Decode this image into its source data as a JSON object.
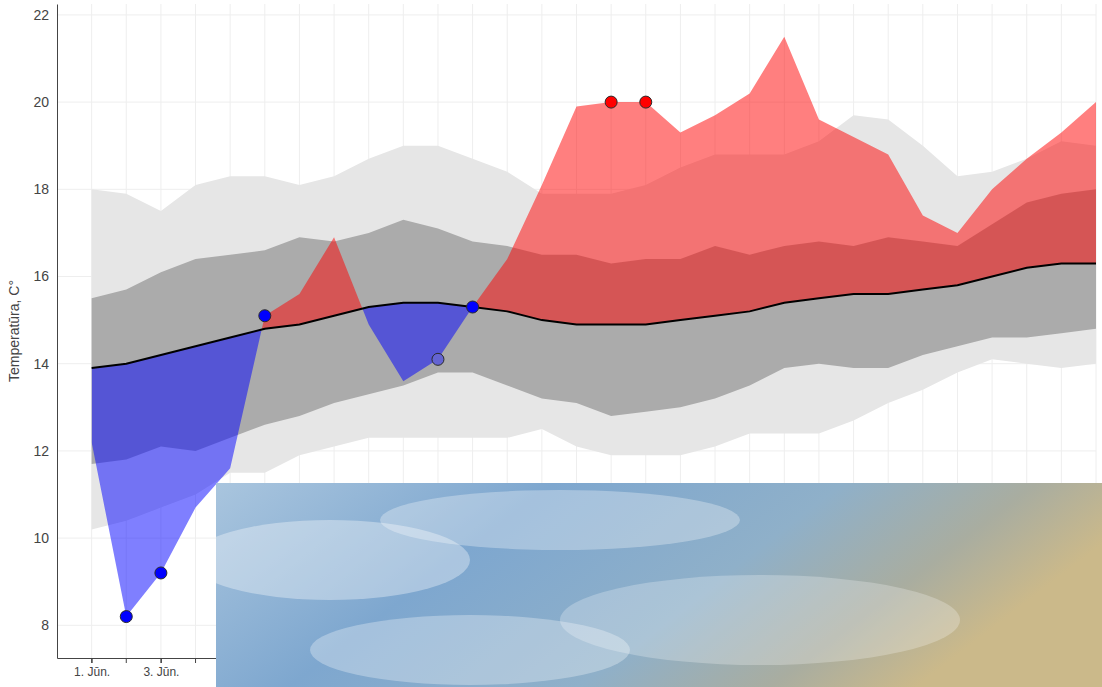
{
  "chart_data": {
    "type": "line",
    "y_label": "Temperatūra, C°",
    "x": [
      1,
      2,
      3,
      4,
      5,
      6,
      7,
      8,
      9,
      10,
      11,
      12,
      13,
      14,
      15,
      16,
      17,
      18,
      19,
      20,
      21,
      22,
      23,
      24,
      25,
      26,
      27,
      28,
      29,
      30
    ],
    "xlim": [
      0,
      30
    ],
    "xticks": [
      {
        "value": 1,
        "label": "1. Jūn."
      },
      {
        "value": 3,
        "label": "3. Jūn."
      }
    ],
    "ylim": [
      7.25,
      22.25
    ],
    "yticks": [
      8,
      10,
      12,
      14,
      16,
      18,
      20,
      22
    ],
    "grid": true,
    "series": [
      {
        "type": "band",
        "color": "#e6e6e6",
        "values": [
          18.0,
          17.9,
          17.5,
          18.1,
          18.3,
          18.3,
          18.1,
          18.3,
          18.7,
          19.0,
          19.0,
          18.7,
          18.4,
          17.9,
          17.9,
          17.9,
          18.1,
          18.5,
          18.8,
          18.8,
          18.8,
          19.1,
          19.7,
          19.6,
          19.0,
          18.3,
          18.4,
          18.7,
          19.1,
          19.0
        ],
        "lower": [
          10.2,
          10.4,
          10.7,
          11.0,
          11.5,
          11.5,
          11.9,
          12.1,
          12.3,
          12.3,
          12.3,
          12.3,
          12.3,
          12.5,
          12.1,
          11.9,
          11.9,
          11.9,
          12.1,
          12.4,
          12.4,
          12.4,
          12.7,
          13.1,
          13.4,
          13.8,
          14.1,
          14.0,
          13.9,
          14.0
        ]
      },
      {
        "type": "band",
        "color": "#ababab",
        "values": [
          15.5,
          15.7,
          16.1,
          16.4,
          16.5,
          16.6,
          16.9,
          16.8,
          17.0,
          17.3,
          17.1,
          16.8,
          16.7,
          16.5,
          16.5,
          16.3,
          16.4,
          16.4,
          16.7,
          16.5,
          16.7,
          16.8,
          16.7,
          16.9,
          16.8,
          16.7,
          17.2,
          17.7,
          17.9,
          18.0
        ],
        "lower": [
          11.7,
          11.8,
          12.1,
          12.0,
          12.3,
          12.6,
          12.8,
          13.1,
          13.3,
          13.5,
          13.8,
          13.8,
          13.5,
          13.2,
          13.1,
          12.8,
          12.9,
          13.0,
          13.2,
          13.5,
          13.9,
          14.0,
          13.9,
          13.9,
          14.2,
          14.4,
          14.6,
          14.6,
          14.7,
          14.8
        ]
      },
      {
        "type": "line",
        "color": "#000000",
        "values": [
          13.9,
          14.0,
          14.2,
          14.4,
          14.6,
          14.8,
          14.9,
          15.1,
          15.3,
          15.4,
          15.4,
          15.3,
          15.2,
          15.0,
          14.9,
          14.9,
          14.9,
          15.0,
          15.1,
          15.2,
          15.4,
          15.5,
          15.6,
          15.6,
          15.7,
          15.8,
          16.0,
          16.2,
          16.3,
          16.3
        ]
      },
      {
        "type": "deviation",
        "colors": [
          "#ff0000",
          "#0000ff"
        ],
        "values": [
          12.2,
          8.2,
          9.2,
          10.7,
          11.6,
          15.1,
          15.6,
          16.9,
          14.9,
          13.6,
          14.1,
          15.3,
          16.4,
          18.1,
          19.9,
          20.0,
          20.0,
          19.3,
          19.7,
          20.2,
          21.5,
          19.6,
          19.2,
          18.8,
          17.4,
          17.0,
          18.0,
          18.7,
          19.3,
          20.0
        ]
      },
      {
        "type": "scatter",
        "marker": "circle",
        "x": [
          2,
          3,
          6,
          11,
          12,
          16,
          17
        ],
        "values": [
          8.2,
          9.2,
          15.1,
          14.1,
          15.3,
          20.0,
          20.0
        ],
        "colors": [
          "#0000ff",
          "#0000ff",
          "#0000ff",
          "#6464d2",
          "#0000ff",
          "#ff0000",
          "#ff0000"
        ]
      }
    ]
  }
}
